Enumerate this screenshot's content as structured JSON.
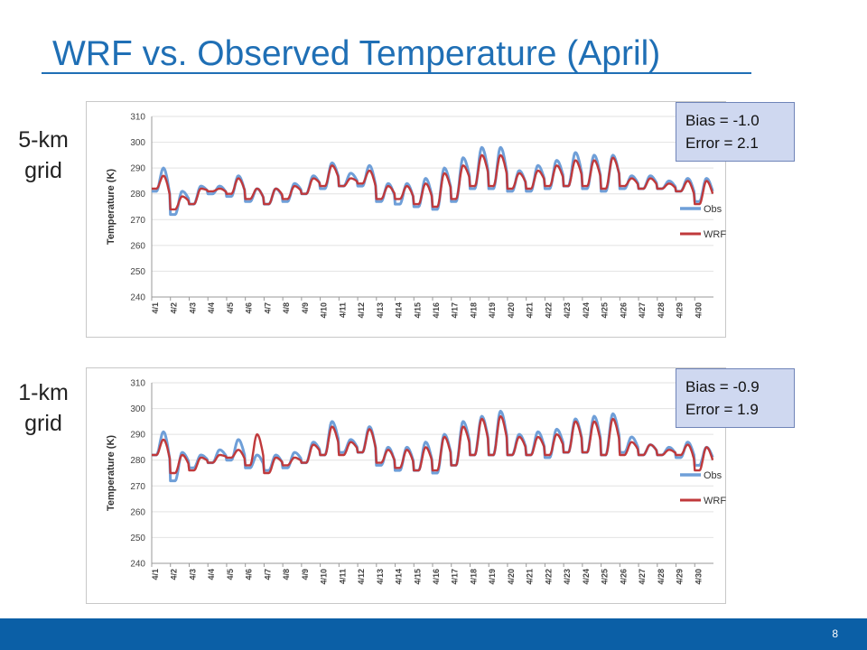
{
  "title": "WRF vs. Observed Temperature (April)",
  "page_number": "8",
  "colors": {
    "title": "#1f6fb5",
    "obs": "#6f9fd8",
    "wrf": "#c0393b",
    "footer": "#0b5fa6",
    "stats_bg": "#cfd8f0"
  },
  "chart_data": [
    {
      "type": "line",
      "grid_label": [
        "5-km",
        "grid"
      ],
      "stats": {
        "bias": "Bias = -1.0",
        "error": "Error = 2.1"
      },
      "ylabel": "Temperature (K)",
      "ylim": [
        240,
        310
      ],
      "yticks": [
        240,
        250,
        260,
        270,
        280,
        290,
        300,
        310
      ],
      "categories": [
        "4/1",
        "4/2",
        "4/3",
        "4/4",
        "4/5",
        "4/6",
        "4/7",
        "4/8",
        "4/9",
        "4/10",
        "4/11",
        "4/12",
        "4/13",
        "4/14",
        "4/15",
        "4/16",
        "4/17",
        "4/18",
        "4/19",
        "4/20",
        "4/21",
        "4/22",
        "4/23",
        "4/24",
        "4/25",
        "4/26",
        "4/27",
        "4/28",
        "4/29",
        "4/30"
      ],
      "series": [
        {
          "name": "Obs",
          "min": [
            281,
            272,
            276,
            280,
            279,
            277,
            276,
            277,
            280,
            282,
            283,
            283,
            277,
            276,
            275,
            274,
            277,
            282,
            282,
            281,
            281,
            282,
            283,
            282,
            281,
            282,
            282,
            282,
            281,
            277
          ],
          "max": [
            290,
            281,
            283,
            283,
            287,
            282,
            282,
            284,
            287,
            292,
            288,
            291,
            284,
            284,
            286,
            290,
            294,
            298,
            298,
            289,
            291,
            293,
            296,
            295,
            295,
            287,
            287,
            285,
            286,
            286
          ]
        },
        {
          "name": "WRF",
          "min": [
            282,
            274,
            276,
            281,
            280,
            278,
            276,
            278,
            280,
            283,
            283,
            284,
            278,
            278,
            276,
            275,
            278,
            283,
            283,
            282,
            282,
            283,
            283,
            283,
            282,
            283,
            282,
            282,
            281,
            276
          ],
          "max": [
            287,
            279,
            282,
            282,
            286,
            282,
            282,
            283,
            286,
            291,
            286,
            289,
            283,
            283,
            284,
            288,
            291,
            295,
            295,
            288,
            289,
            291,
            293,
            293,
            294,
            286,
            286,
            284,
            285,
            285
          ]
        }
      ]
    },
    {
      "type": "line",
      "grid_label": [
        "1-km",
        "grid"
      ],
      "stats": {
        "bias": "Bias = -0.9",
        "error": "Error = 1.9"
      },
      "ylabel": "Temperature (K)",
      "ylim": [
        240,
        310
      ],
      "yticks": [
        240,
        250,
        260,
        270,
        280,
        290,
        300,
        310
      ],
      "categories": [
        "4/1",
        "4/2",
        "4/3",
        "4/4",
        "4/5",
        "4/6",
        "4/7",
        "4/8",
        "4/9",
        "4/10",
        "4/11",
        "4/12",
        "4/13",
        "4/14",
        "4/15",
        "4/16",
        "4/17",
        "4/18",
        "4/19",
        "4/20",
        "4/21",
        "4/22",
        "4/23",
        "4/24",
        "4/25",
        "4/26",
        "4/27",
        "4/28",
        "4/29",
        "4/30"
      ],
      "series": [
        {
          "name": "Obs",
          "min": [
            282,
            272,
            277,
            279,
            280,
            277,
            276,
            277,
            279,
            282,
            283,
            283,
            278,
            276,
            276,
            275,
            278,
            282,
            282,
            282,
            282,
            281,
            283,
            283,
            282,
            283,
            282,
            282,
            281,
            278
          ],
          "max": [
            291,
            283,
            282,
            284,
            288,
            282,
            282,
            283,
            287,
            295,
            288,
            293,
            285,
            285,
            287,
            290,
            295,
            297,
            299,
            290,
            291,
            292,
            296,
            297,
            298,
            289,
            286,
            285,
            287,
            285
          ]
        },
        {
          "name": "WRF",
          "min": [
            282,
            275,
            276,
            279,
            281,
            278,
            275,
            278,
            279,
            282,
            282,
            283,
            279,
            277,
            276,
            276,
            278,
            282,
            282,
            282,
            282,
            282,
            283,
            283,
            282,
            282,
            282,
            282,
            282,
            276
          ],
          "max": [
            288,
            282,
            281,
            282,
            284,
            290,
            281,
            281,
            286,
            293,
            287,
            292,
            284,
            284,
            285,
            289,
            293,
            296,
            297,
            289,
            289,
            290,
            295,
            295,
            296,
            287,
            286,
            284,
            286,
            285
          ]
        }
      ]
    }
  ]
}
